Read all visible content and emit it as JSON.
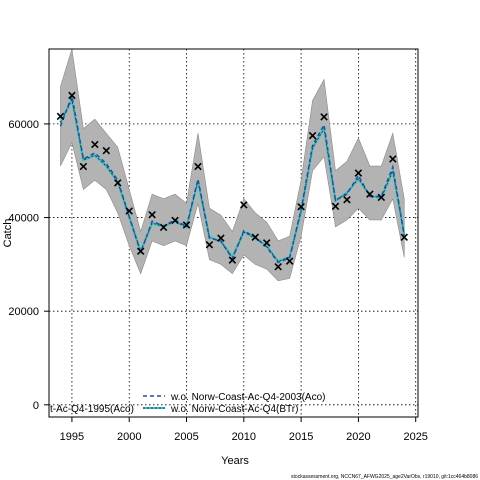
{
  "chart_data": {
    "type": "line",
    "title": "",
    "xlabel": "Years",
    "ylabel": "Catch",
    "xlim": [
      1993,
      2025.2
    ],
    "ylim": [
      -2600,
      76000
    ],
    "x_ticks": [
      1995,
      2000,
      2005,
      2010,
      2015,
      2020,
      2025
    ],
    "y_ticks": [
      0,
      20000,
      40000,
      60000
    ],
    "x_tick_labels": [
      "1995",
      "2000",
      "2005",
      "2010",
      "2015",
      "2020",
      "2025"
    ],
    "y_tick_labels": [
      "0",
      "20000",
      "40000",
      "60000"
    ],
    "grid": true,
    "legend_placement": "bottom-left",
    "years": [
      1994,
      1995,
      1996,
      1997,
      1998,
      1999,
      2000,
      2001,
      2002,
      2003,
      2004,
      2005,
      2006,
      2007,
      2008,
      2009,
      2010,
      2011,
      2012,
      2013,
      2014,
      2015,
      2016,
      2017,
      2018,
      2019,
      2020,
      2021,
      2022,
      2023,
      2024
    ],
    "observed": [
      61600,
      66100,
      50900,
      55600,
      54300,
      47400,
      41400,
      32800,
      40600,
      37900,
      39400,
      38400,
      50900,
      34200,
      35600,
      30900,
      42700,
      35800,
      34600,
      29500,
      30700,
      42300,
      57500,
      61500,
      42400,
      43800,
      49500,
      45000,
      44300,
      52500,
      35800
    ],
    "band_upper": [
      68000,
      76000,
      59000,
      61000,
      58000,
      55000,
      46000,
      37000,
      45000,
      44000,
      45000,
      43000,
      58000,
      42000,
      40500,
      37000,
      44000,
      41000,
      39000,
      35000,
      36000,
      48000,
      65000,
      69500,
      50000,
      52000,
      57000,
      51000,
      51000,
      58000,
      44000
    ],
    "band_lower": [
      51000,
      56000,
      46000,
      48000,
      46000,
      41000,
      34000,
      28000,
      35000,
      34000,
      35000,
      34000,
      43000,
      31000,
      30000,
      28000,
      32000,
      30000,
      29000,
      26500,
      27000,
      36000,
      50000,
      53000,
      38000,
      39500,
      42000,
      39500,
      39500,
      44000,
      31500
    ],
    "series": [
      {
        "name": "w.o. Norw-Coast-Ac-Q4-2003(Aco)",
        "color": "#1f4fa8",
        "style": "dashed",
        "values": [
          59500,
          66000,
          52500,
          53800,
          51500,
          48000,
          40200,
          32500,
          39200,
          38200,
          39500,
          38100,
          48200,
          35600,
          35000,
          31200,
          37200,
          35800,
          33700,
          30400,
          31400,
          41700,
          55400,
          59800,
          43700,
          45000,
          49000,
          44500,
          44500,
          50800,
          36200
        ]
      },
      {
        "name": "w.o. Norw-Coast-Ac-Q4(BTr)",
        "color": "#2fc4c4",
        "style": "solid",
        "values": [
          60300,
          65200,
          52300,
          53300,
          51000,
          47600,
          40100,
          32800,
          38800,
          38100,
          39200,
          37900,
          47800,
          35800,
          34900,
          31500,
          36900,
          35600,
          33900,
          30600,
          31600,
          41300,
          54900,
          59000,
          43600,
          45300,
          48300,
          44700,
          44200,
          50000,
          36300
        ]
      }
    ],
    "legend_clipped_entry": "t-Ac-Q4-1995(Aco)",
    "watermark": "stockassessment.org, NCCN67_AFWG2025_age2VarObs, r19010, git:1cc464b8086"
  }
}
